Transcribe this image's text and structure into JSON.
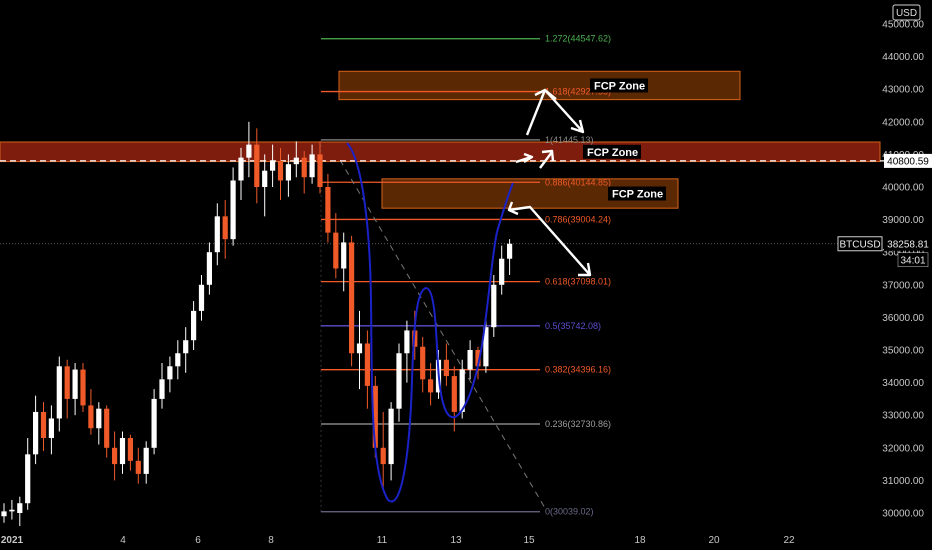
{
  "chart_data": {
    "type": "candlestick",
    "symbol": "BTCUSD",
    "currency": "USD",
    "ylim": [
      29800,
      45600
    ],
    "y_ticks": [
      30000,
      31000,
      32000,
      33000,
      34000,
      35000,
      36000,
      37000,
      38000,
      39000,
      40000,
      41000,
      42000,
      43000,
      44000,
      45000
    ],
    "x_labels": [
      "2021",
      "4",
      "6",
      "8",
      "11",
      "13",
      "15",
      "18",
      "20",
      "22"
    ],
    "last_price": "38258.81",
    "countdown": "34:01",
    "level_line_label": "40800.59",
    "fib_levels": [
      {
        "label": "1.272(44547.62)",
        "value": 44547.62,
        "color": "#4caf50"
      },
      {
        "label": "1.618(42927.55)",
        "value": 42927.55,
        "color": "#f05a28"
      },
      {
        "label": "1(41445.13)",
        "value": 41445.13,
        "color": "#8a8a8a"
      },
      {
        "label": "0.886(40144.85)",
        "value": 40144.85,
        "color": "#f05a28"
      },
      {
        "label": "0.786(39004.24)",
        "value": 39004.24,
        "color": "#f05a28"
      },
      {
        "label": "0.618(37098.01)",
        "value": 37098.01,
        "color": "#f05a28"
      },
      {
        "label": "0.5(35742.08)",
        "value": 35742.08,
        "color": "#5b4fcf"
      },
      {
        "label": "0.382(34396.16)",
        "value": 34396.16,
        "color": "#f05a28"
      },
      {
        "label": "0.236(32730.86)",
        "value": 32730.86,
        "color": "#9e9e9e"
      },
      {
        "label": "0(30039.02)",
        "value": 30039.02,
        "color": "#6b6b8a"
      }
    ],
    "zones": [
      {
        "label": "FCP Zone",
        "top": 43550,
        "bottom": 42680
      },
      {
        "label": "FCP Zone",
        "top": 41380,
        "bottom": 40780
      },
      {
        "label": "FCP Zone",
        "top": 40250,
        "bottom": 39350
      }
    ],
    "candles": [
      {
        "o": 29900,
        "h": 30300,
        "l": 29700,
        "c": 30050
      },
      {
        "o": 30050,
        "h": 30400,
        "l": 29800,
        "c": 30100
      },
      {
        "o": 30000,
        "h": 30500,
        "l": 29600,
        "c": 30300
      },
      {
        "o": 30300,
        "h": 32300,
        "l": 30100,
        "c": 31800
      },
      {
        "o": 31800,
        "h": 33600,
        "l": 31500,
        "c": 33100
      },
      {
        "o": 33100,
        "h": 33400,
        "l": 31900,
        "c": 32300
      },
      {
        "o": 32300,
        "h": 33300,
        "l": 31800,
        "c": 32900
      },
      {
        "o": 32900,
        "h": 34800,
        "l": 32500,
        "c": 34500
      },
      {
        "o": 34500,
        "h": 34700,
        "l": 32900,
        "c": 33500
      },
      {
        "o": 33500,
        "h": 34600,
        "l": 33000,
        "c": 34400
      },
      {
        "o": 34400,
        "h": 34600,
        "l": 33100,
        "c": 33300
      },
      {
        "o": 33300,
        "h": 33800,
        "l": 32400,
        "c": 32600
      },
      {
        "o": 32600,
        "h": 33400,
        "l": 32100,
        "c": 33200
      },
      {
        "o": 33200,
        "h": 33300,
        "l": 31700,
        "c": 32000
      },
      {
        "o": 32000,
        "h": 32500,
        "l": 31000,
        "c": 31500
      },
      {
        "o": 31500,
        "h": 32500,
        "l": 31200,
        "c": 32300
      },
      {
        "o": 32300,
        "h": 32400,
        "l": 31300,
        "c": 31600
      },
      {
        "o": 31600,
        "h": 32000,
        "l": 30900,
        "c": 31200
      },
      {
        "o": 31200,
        "h": 32200,
        "l": 30900,
        "c": 32000
      },
      {
        "o": 32000,
        "h": 33800,
        "l": 31800,
        "c": 33500
      },
      {
        "o": 33500,
        "h": 34600,
        "l": 33200,
        "c": 34100
      },
      {
        "o": 34100,
        "h": 34800,
        "l": 33700,
        "c": 34500
      },
      {
        "o": 34500,
        "h": 35300,
        "l": 34100,
        "c": 34900
      },
      {
        "o": 34900,
        "h": 35700,
        "l": 34300,
        "c": 35300
      },
      {
        "o": 35300,
        "h": 36500,
        "l": 35000,
        "c": 36200
      },
      {
        "o": 36200,
        "h": 37300,
        "l": 35900,
        "c": 37000
      },
      {
        "o": 37000,
        "h": 38300,
        "l": 36700,
        "c": 38000
      },
      {
        "o": 38000,
        "h": 39500,
        "l": 37600,
        "c": 39100
      },
      {
        "o": 39100,
        "h": 39600,
        "l": 37800,
        "c": 38400
      },
      {
        "o": 38400,
        "h": 40600,
        "l": 38200,
        "c": 40200
      },
      {
        "o": 40200,
        "h": 41200,
        "l": 39600,
        "c": 40900
      },
      {
        "o": 40900,
        "h": 42000,
        "l": 40300,
        "c": 41300
      },
      {
        "o": 41300,
        "h": 41800,
        "l": 39500,
        "c": 40000
      },
      {
        "o": 40000,
        "h": 41000,
        "l": 39100,
        "c": 40500
      },
      {
        "o": 40500,
        "h": 41300,
        "l": 40000,
        "c": 40800
      },
      {
        "o": 40800,
        "h": 41200,
        "l": 39600,
        "c": 40200
      },
      {
        "o": 40200,
        "h": 41000,
        "l": 39700,
        "c": 40700
      },
      {
        "o": 40700,
        "h": 41400,
        "l": 40300,
        "c": 40900
      },
      {
        "o": 40900,
        "h": 41100,
        "l": 39800,
        "c": 40300
      },
      {
        "o": 40300,
        "h": 41300,
        "l": 40100,
        "c": 41000
      },
      {
        "o": 41000,
        "h": 41400,
        "l": 39800,
        "c": 40000
      },
      {
        "o": 40000,
        "h": 40400,
        "l": 38300,
        "c": 38600
      },
      {
        "o": 38600,
        "h": 39200,
        "l": 37200,
        "c": 37500
      },
      {
        "o": 37500,
        "h": 38600,
        "l": 36800,
        "c": 38300
      },
      {
        "o": 38300,
        "h": 38500,
        "l": 34500,
        "c": 34900
      },
      {
        "o": 34900,
        "h": 36200,
        "l": 33800,
        "c": 35200
      },
      {
        "o": 35200,
        "h": 35600,
        "l": 33200,
        "c": 33900
      },
      {
        "o": 33900,
        "h": 34200,
        "l": 31700,
        "c": 32000
      },
      {
        "o": 32000,
        "h": 33100,
        "l": 30700,
        "c": 31500
      },
      {
        "o": 31500,
        "h": 33400,
        "l": 31000,
        "c": 33200
      },
      {
        "o": 33200,
        "h": 35200,
        "l": 32800,
        "c": 34900
      },
      {
        "o": 34900,
        "h": 35900,
        "l": 34000,
        "c": 35600
      },
      {
        "o": 35600,
        "h": 36200,
        "l": 34700,
        "c": 35100
      },
      {
        "o": 35100,
        "h": 35400,
        "l": 33700,
        "c": 34100
      },
      {
        "o": 34100,
        "h": 34600,
        "l": 33300,
        "c": 33700
      },
      {
        "o": 33700,
        "h": 35000,
        "l": 33500,
        "c": 34700
      },
      {
        "o": 34700,
        "h": 35200,
        "l": 33900,
        "c": 34200
      },
      {
        "o": 34200,
        "h": 34500,
        "l": 32500,
        "c": 33100
      },
      {
        "o": 33100,
        "h": 34700,
        "l": 32900,
        "c": 34400
      },
      {
        "o": 34400,
        "h": 35300,
        "l": 34100,
        "c": 35000
      },
      {
        "o": 35000,
        "h": 35100,
        "l": 34100,
        "c": 34500
      },
      {
        "o": 34500,
        "h": 36000,
        "l": 34300,
        "c": 35700
      },
      {
        "o": 35700,
        "h": 37300,
        "l": 35400,
        "c": 37000
      },
      {
        "o": 37000,
        "h": 38200,
        "l": 36700,
        "c": 37800
      },
      {
        "o": 37800,
        "h": 38400,
        "l": 37300,
        "c": 38259
      }
    ]
  },
  "colors": {
    "up": "#ffffff",
    "down": "#f05a28",
    "zone_fill": "#7a3505",
    "zone_stroke": "#d8621a",
    "band_fill": "#8c1f10",
    "curve": "#1a22c8",
    "grid": "#1a1a1a"
  }
}
